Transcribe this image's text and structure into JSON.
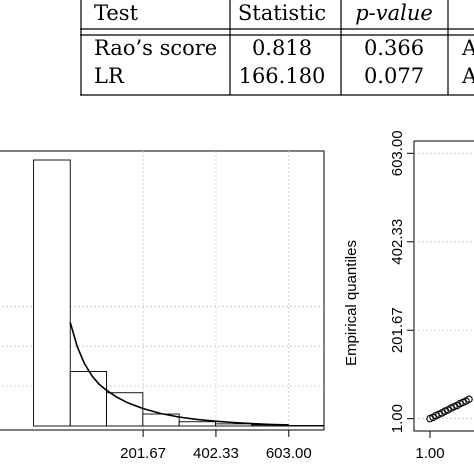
{
  "table": {
    "headers": [
      "Test",
      "Statistic",
      "p-value",
      ""
    ],
    "rows": [
      [
        "Rao’s score",
        "0.818",
        "0.366",
        "A"
      ],
      [
        "LR",
        "166.180",
        "0.077",
        "A"
      ]
    ]
  },
  "chart_data": [
    {
      "type": "bar",
      "title": "",
      "xlabel": "",
      "ylabel": "",
      "xlim": [
        -198,
        700
      ],
      "x_ticks": [
        "201.67",
        "402.33",
        "603.00"
      ],
      "x_tick_values": [
        201.67,
        402.33,
        603.0
      ],
      "bins": [
        {
          "from": -100,
          "to": 1,
          "height": 1.0
        },
        {
          "from": 1,
          "to": 101,
          "height": 0.205
        },
        {
          "from": 101,
          "to": 201,
          "height": 0.125
        },
        {
          "from": 201,
          "to": 301,
          "height": 0.045
        },
        {
          "from": 301,
          "to": 401,
          "height": 0.016
        },
        {
          "from": 401,
          "to": 501,
          "height": 0.008
        },
        {
          "from": 501,
          "to": 601,
          "height": 0.004
        },
        {
          "from": 601,
          "to": 700,
          "height": 0.002
        }
      ],
      "density_curve": {
        "x": [
          1,
          20,
          40,
          60,
          80,
          100,
          130,
          160,
          200,
          250,
          300,
          350,
          400,
          450,
          500,
          550,
          603
        ],
        "y": [
          0.39,
          0.3,
          0.235,
          0.19,
          0.158,
          0.135,
          0.108,
          0.087,
          0.066,
          0.047,
          0.034,
          0.025,
          0.018,
          0.013,
          0.009,
          0.006,
          0.004
        ]
      },
      "grid": true
    },
    {
      "type": "scatter",
      "title": "",
      "xlabel": "",
      "ylabel": "Empirical quantiles",
      "x_ticks": [
        "1.00"
      ],
      "y_ticks": [
        "1.00",
        "201.67",
        "402.33",
        "603.00"
      ],
      "y_tick_values": [
        1.0,
        201.67,
        402.33,
        603.0
      ],
      "ylim": [
        -27,
        631
      ],
      "points": {
        "x": [
          1,
          4,
          7,
          10,
          13,
          16,
          19,
          22,
          25,
          28,
          31,
          34,
          37,
          40
        ],
        "y": [
          1,
          4,
          8,
          11,
          14,
          18,
          21,
          25,
          28,
          31,
          35,
          38,
          41,
          45
        ]
      },
      "grid": true
    }
  ]
}
